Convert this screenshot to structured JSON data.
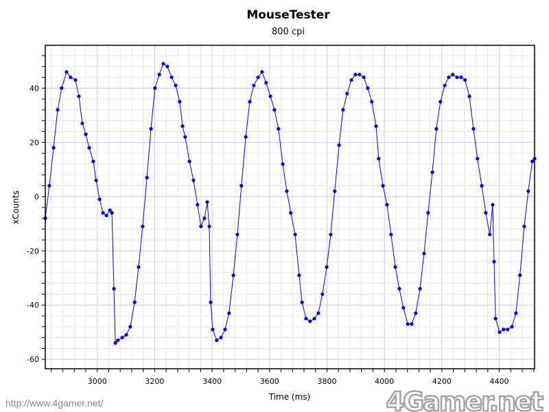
{
  "chart_data": {
    "type": "line",
    "title": "MouseTester",
    "subtitle": "800 cpi",
    "xlabel": "Time (ms)",
    "ylabel": "xCounts",
    "xlim": [
      2819,
      4523
    ],
    "ylim": [
      -63.5,
      55.8
    ],
    "xticks": [
      3000,
      3200,
      3400,
      3600,
      3800,
      4000,
      4200,
      4400
    ],
    "yticks": [
      -60,
      -40,
      -20,
      0,
      20,
      40
    ],
    "x_minor_step": 40,
    "y_minor_step": 4,
    "grid": true,
    "markers": true,
    "color": "#0000ff",
    "series": [
      {
        "x": [
          2819,
          2833,
          2848,
          2862,
          2876,
          2893,
          2907,
          2924,
          2936,
          2948,
          2960,
          2972,
          2986,
          2996,
          3008,
          3020,
          3032,
          3044,
          3051,
          3058,
          3063,
          3072,
          3087,
          3101,
          3115,
          3130,
          3144,
          3158,
          3173,
          3187,
          3201,
          3216,
          3230,
          3244,
          3259,
          3273,
          3287,
          3297,
          3306,
          3321,
          3335,
          3349,
          3361,
          3373,
          3383,
          3390,
          3395,
          3402,
          3416,
          3431,
          3445,
          3459,
          3474,
          3488,
          3502,
          3517,
          3531,
          3545,
          3560,
          3574,
          3588,
          3603,
          3617,
          3631,
          3646,
          3660,
          3674,
          3689,
          3703,
          3713,
          3727,
          3741,
          3756,
          3770,
          3784,
          3799,
          3813,
          3827,
          3842,
          3856,
          3870,
          3885,
          3899,
          3913,
          3928,
          3942,
          3956,
          3971,
          3980,
          3995,
          4009,
          4023,
          4038,
          4052,
          4066,
          4081,
          4095,
          4109,
          4124,
          4138,
          4152,
          4167,
          4181,
          4195,
          4210,
          4224,
          4238,
          4253,
          4267,
          4281,
          4296,
          4310,
          4324,
          4339,
          4353,
          4367,
          4377,
          4382,
          4387,
          4401,
          4415,
          4429,
          4444,
          4458,
          4472,
          4487,
          4501,
          4515,
          4523
        ],
        "y": [
          -8,
          4,
          18,
          32,
          40,
          46,
          44,
          43,
          37,
          27,
          23,
          18,
          13,
          6,
          -1,
          -6,
          -7,
          -5,
          -6,
          -34,
          -54,
          -53,
          -52,
          -51,
          -48,
          -39,
          -26,
          -11,
          7,
          25,
          40,
          45,
          49,
          48,
          44,
          41,
          35,
          26,
          22,
          13,
          6,
          -3,
          -11,
          -8,
          -2,
          -11,
          -39,
          -49,
          -53,
          -52,
          -49,
          -43,
          -29,
          -14,
          4,
          22,
          35,
          41,
          44,
          46,
          42,
          37,
          32,
          25,
          12,
          2,
          -6,
          -14,
          -29,
          -39,
          -45,
          -46,
          -45,
          -43,
          -36,
          -26,
          -14,
          2,
          19,
          32,
          38,
          43,
          45,
          45,
          44,
          40,
          35,
          26,
          14,
          4,
          -3,
          -14,
          -26,
          -34,
          -41,
          -47,
          -47,
          -43,
          -34,
          -21,
          -6,
          9,
          25,
          35,
          41,
          44,
          45,
          44,
          44,
          43,
          37,
          25,
          14,
          4,
          -6,
          -14,
          -3,
          -24,
          -45,
          -50,
          -49,
          -49,
          -48,
          -43,
          -29,
          -11,
          2,
          13,
          14
        ]
      }
    ]
  },
  "watermark": {
    "logo": "4Gamer.net",
    "url": "http://www.4gamer.net/"
  }
}
